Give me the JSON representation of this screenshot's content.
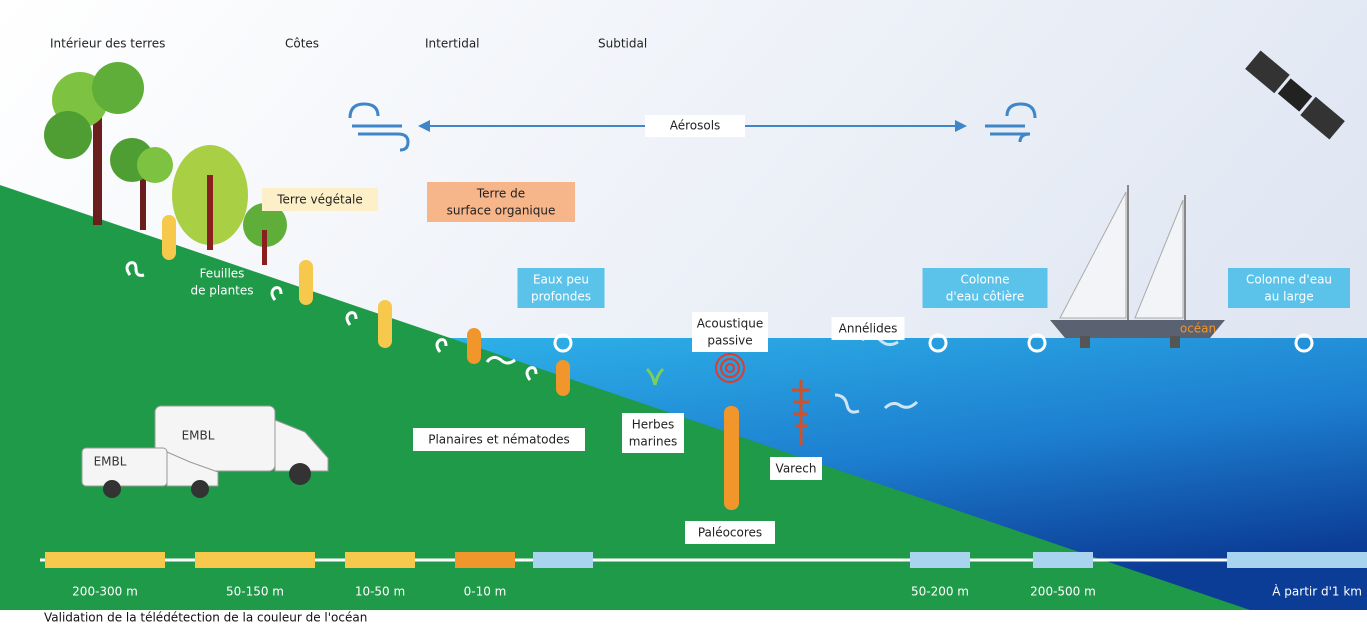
{
  "zones": [
    "Intérieur des terres",
    "Côtes",
    "Intertidal",
    "Subtidal"
  ],
  "aerosols": "Aérosols",
  "labels": [
    [
      "Terre végétale"
    ],
    [
      "Terre de",
      "surface organique"
    ],
    [
      "Feuilles",
      "de plantes"
    ],
    [
      "Eaux peu",
      "profondes"
    ],
    [
      "Colonne",
      "d'eau côtière"
    ],
    [
      "Colonne d'eau",
      "au large"
    ],
    [
      "Acoustique",
      "passive"
    ],
    [
      "Annélides"
    ],
    [
      "Herbes",
      "marines"
    ],
    [
      "Planaires et nématodes"
    ],
    [
      "Varech"
    ],
    [
      "Paléocores"
    ]
  ],
  "vehicles": [
    "EMBL",
    "EMBL"
  ],
  "boat": "océan",
  "scale": [
    "200-300 m",
    "50-150 m",
    "10-50 m",
    "0-10 m",
    "50-200 m",
    "200-500 m",
    "À partir d'1 km"
  ],
  "footer": "Validation de la télédétection de la couleur de l'océan"
}
